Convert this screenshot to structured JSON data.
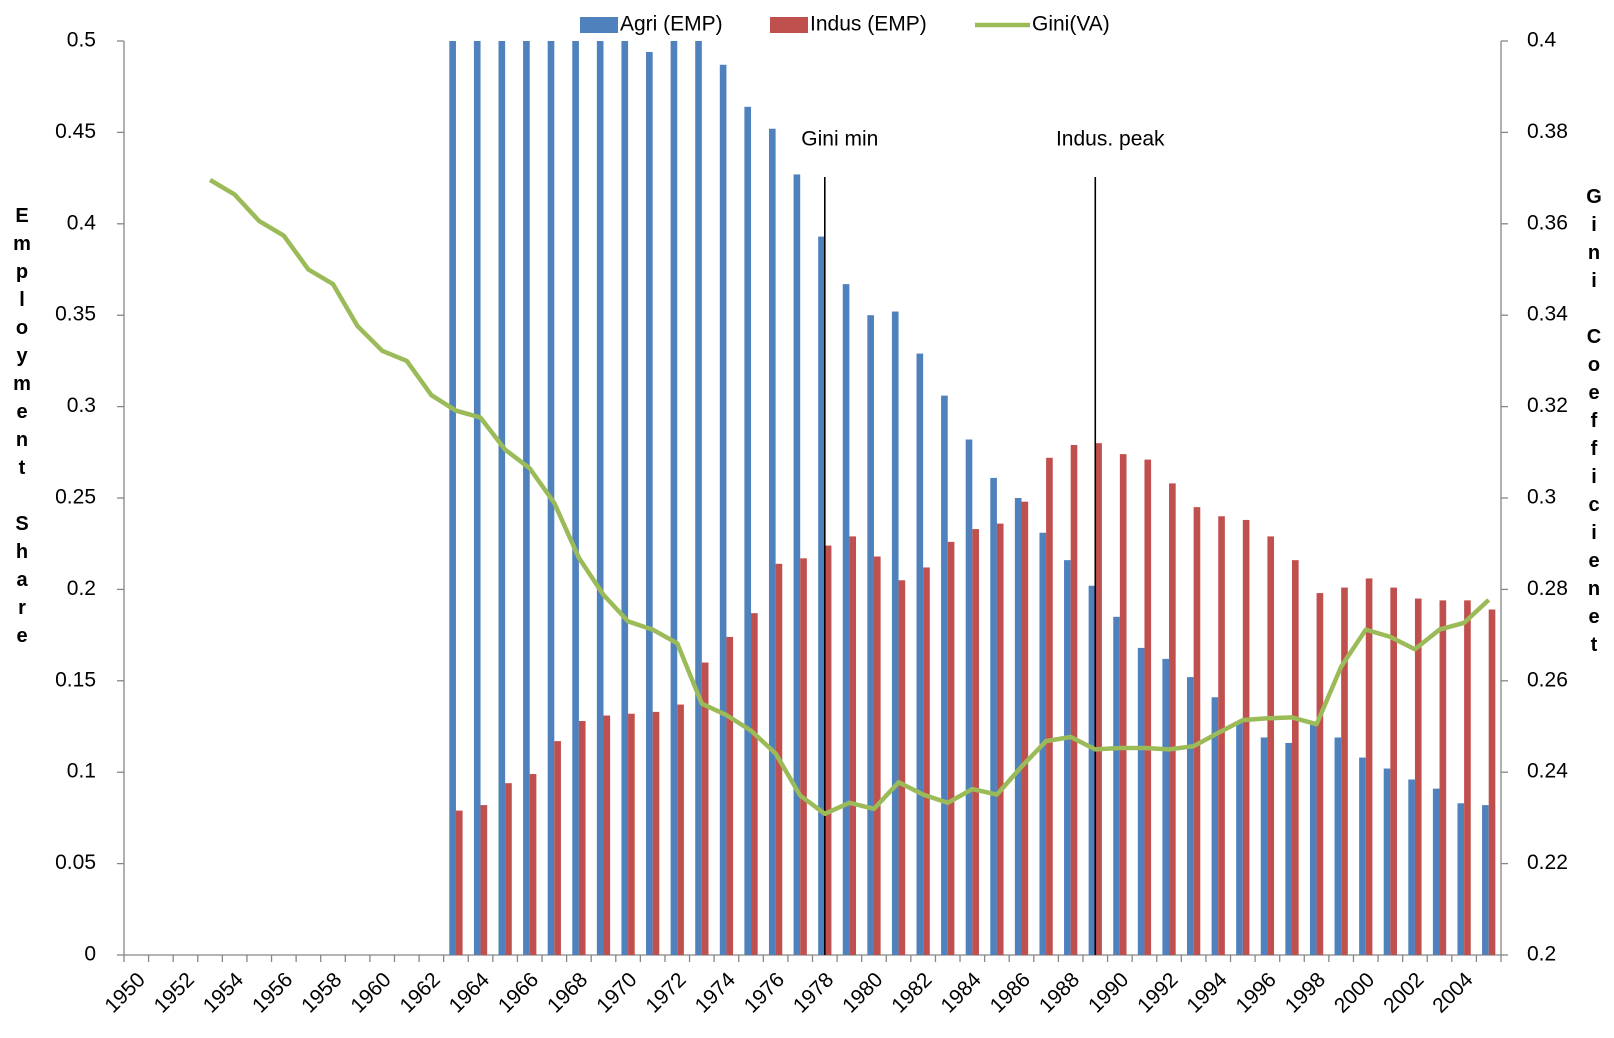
{
  "chart_data": {
    "type": "bar-line",
    "categories": [
      "1950",
      null,
      "1952",
      null,
      "1954",
      null,
      "1956",
      null,
      "1958",
      null,
      "1960",
      null,
      "1962",
      null,
      "1964",
      null,
      "1966",
      null,
      "1968",
      null,
      "1970",
      null,
      "1972",
      null,
      "1974",
      null,
      "1976",
      null,
      "1978",
      null,
      "1980",
      null,
      "1982",
      null,
      "1984",
      null,
      "1986",
      null,
      "1988",
      null,
      "1990",
      null,
      "1992",
      null,
      "1994",
      null,
      "1996",
      null,
      "1998",
      null,
      "2000",
      null,
      "2002",
      null,
      "2004",
      null
    ],
    "series": [
      {
        "name": "Agri (EMP)",
        "type": "bar",
        "color": "#4f81bd",
        "values": [
          null,
          null,
          null,
          null,
          null,
          null,
          null,
          null,
          null,
          null,
          null,
          null,
          null,
          0.5,
          0.5,
          0.5,
          0.5,
          0.5,
          0.5,
          0.5,
          0.5,
          0.494,
          0.5,
          0.5,
          0.487,
          0.464,
          0.452,
          0.427,
          0.393,
          0.367,
          0.35,
          0.352,
          0.329,
          0.306,
          0.282,
          0.261,
          0.25,
          0.231,
          0.216,
          0.202,
          0.185,
          0.168,
          0.162,
          0.152,
          0.141,
          0.128,
          0.119,
          0.116,
          0.126,
          0.119,
          0.108,
          0.102,
          0.096,
          0.091,
          0.083,
          0.082
        ]
      },
      {
        "name": "Indus (EMP)",
        "type": "bar",
        "color": "#c0504d",
        "values": [
          null,
          null,
          null,
          null,
          null,
          null,
          null,
          null,
          null,
          null,
          null,
          null,
          null,
          0.079,
          0.082,
          0.094,
          0.099,
          0.117,
          0.128,
          0.131,
          0.132,
          0.133,
          0.137,
          0.16,
          0.174,
          0.187,
          0.214,
          0.217,
          0.224,
          0.229,
          0.218,
          0.205,
          0.212,
          0.226,
          0.233,
          0.236,
          0.248,
          0.272,
          0.279,
          0.28,
          0.274,
          0.271,
          0.258,
          0.245,
          0.24,
          0.238,
          0.229,
          0.216,
          0.198,
          0.201,
          0.206,
          0.201,
          0.195,
          0.194,
          0.194,
          0.189
        ]
      },
      {
        "name": "Gini(VA)",
        "type": "line",
        "axis": "y2",
        "color": "#9bbb59",
        "values": [
          null,
          null,
          null,
          0.3696,
          0.3664,
          0.3606,
          0.3574,
          0.35,
          0.3468,
          0.3376,
          0.3322,
          0.33,
          0.3225,
          0.3191,
          0.3176,
          0.3106,
          0.3065,
          0.2989,
          0.2869,
          0.2788,
          0.273,
          0.2712,
          0.2682,
          0.255,
          0.2525,
          0.2491,
          0.2441,
          0.2349,
          0.2309,
          0.2333,
          0.232,
          0.2378,
          0.2351,
          0.2333,
          0.2363,
          0.2351,
          0.2412,
          0.2468,
          0.2477,
          0.245,
          0.2453,
          0.2453,
          0.245,
          0.2457,
          0.2486,
          0.2514,
          0.2518,
          0.252,
          0.2505,
          0.2631,
          0.2712,
          0.2696,
          0.2669,
          0.2712,
          0.2727,
          0.2777
        ]
      }
    ],
    "ylim": [
      0,
      0.5
    ],
    "yticks": [
      0,
      0.05,
      0.1,
      0.15,
      0.2,
      0.25,
      0.3,
      0.35,
      0.4,
      0.45,
      0.5
    ],
    "y2lim": [
      0.2,
      0.4
    ],
    "y2ticks": [
      0.2,
      0.22,
      0.24,
      0.26,
      0.28,
      0.3,
      0.32,
      0.34,
      0.36,
      0.38,
      0.4
    ],
    "ylabel": "Employment Share",
    "y2label": "Gini Coefficienet",
    "annotations": [
      {
        "text": "Gini min",
        "x": 1978
      },
      {
        "text": "Indus. peak",
        "x": 1989
      }
    ],
    "legend": "top",
    "grid": false
  }
}
